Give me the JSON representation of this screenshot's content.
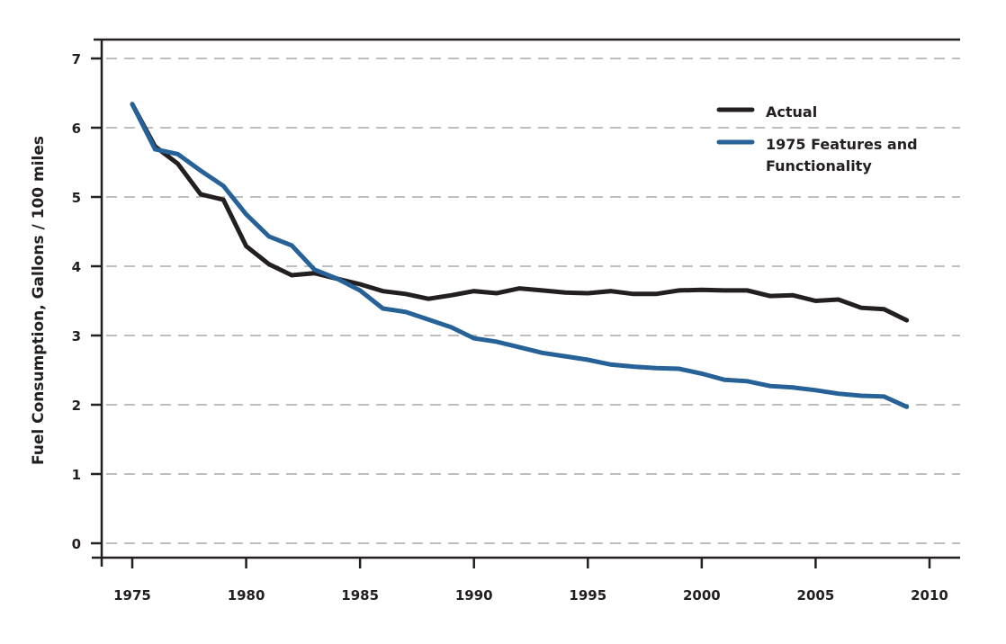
{
  "chart_data": {
    "type": "line",
    "title": "",
    "xlabel": "",
    "ylabel": "Fuel Consumption, Gallons / 100 miles",
    "xlim": [
      1973.7,
      2011.3
    ],
    "ylim": [
      -0.2,
      7.3
    ],
    "x_ticks": [
      1975,
      1980,
      1985,
      1990,
      1995,
      2000,
      2005,
      2010
    ],
    "y_ticks": [
      0,
      1,
      2,
      3,
      4,
      5,
      6,
      7
    ],
    "grid": "horizontal dashed",
    "legend_position": "top-right",
    "x": [
      1975,
      1976,
      1977,
      1978,
      1979,
      1980,
      1981,
      1982,
      1983,
      1984,
      1985,
      1986,
      1987,
      1988,
      1989,
      1990,
      1991,
      1992,
      1993,
      1994,
      1995,
      1996,
      1997,
      1998,
      1999,
      2000,
      2001,
      2002,
      2003,
      2004,
      2005,
      2006,
      2007,
      2008,
      2009
    ],
    "series": [
      {
        "name": "Actual",
        "color": "#231f20",
        "values": [
          6.34,
          5.73,
          5.48,
          5.04,
          4.96,
          4.29,
          4.03,
          3.87,
          3.9,
          3.82,
          3.74,
          3.64,
          3.6,
          3.53,
          3.58,
          3.64,
          3.61,
          3.68,
          3.65,
          3.62,
          3.61,
          3.64,
          3.6,
          3.6,
          3.65,
          3.66,
          3.65,
          3.65,
          3.57,
          3.58,
          3.5,
          3.52,
          3.4,
          3.38,
          3.22
        ]
      },
      {
        "name": "1975 Features and Functionality",
        "legend_lines": [
          "1975 Features and",
          "Functionality"
        ],
        "color": "#266198",
        "values": [
          6.34,
          5.69,
          5.62,
          5.38,
          5.16,
          4.75,
          4.43,
          4.3,
          3.95,
          3.82,
          3.65,
          3.39,
          3.34,
          3.23,
          3.12,
          2.96,
          2.91,
          2.83,
          2.75,
          2.7,
          2.65,
          2.58,
          2.55,
          2.53,
          2.52,
          2.45,
          2.36,
          2.34,
          2.27,
          2.25,
          2.21,
          2.16,
          2.13,
          2.12,
          1.97
        ]
      }
    ]
  }
}
